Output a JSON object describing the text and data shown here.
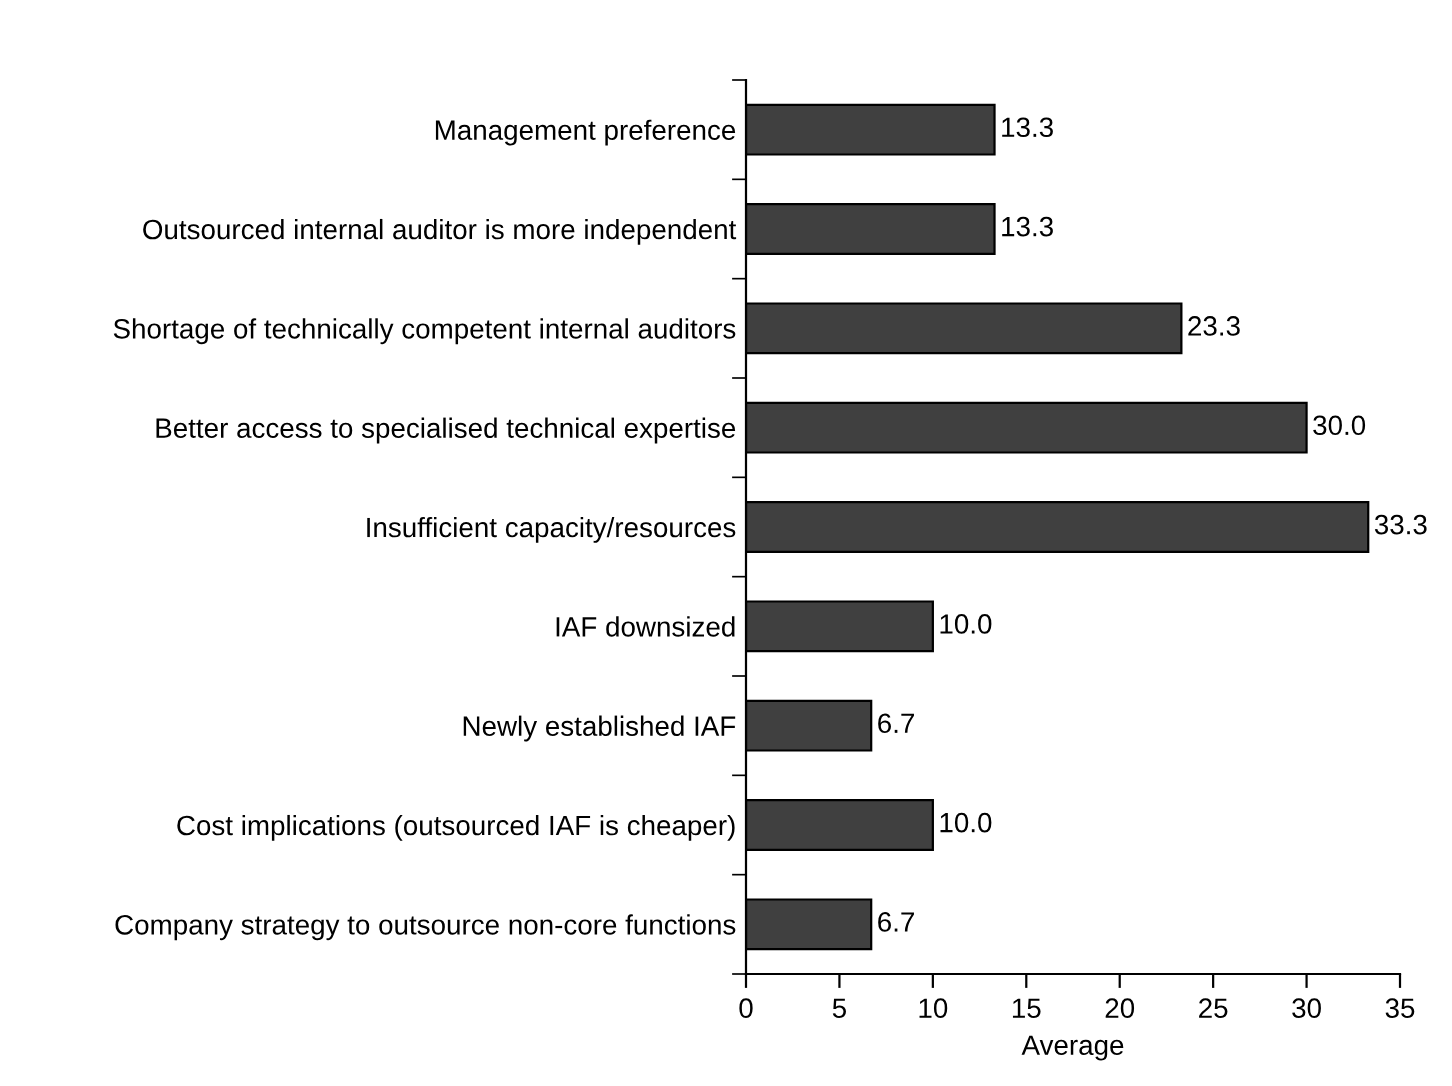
{
  "chart_data": {
    "type": "bar",
    "orientation": "horizontal",
    "xlabel": "Average",
    "categories": [
      "Management preference",
      "Outsourced internal auditor is more independent",
      "Shortage of technically competent internal auditors",
      "Better access to specialised technical expertise",
      "Insufficient capacity/resources",
      "IAF downsized",
      "Newly established IAF",
      "Cost implications (outsourced IAF is cheaper)",
      "Company strategy to outsource non-core functions"
    ],
    "values": [
      13.3,
      13.3,
      23.3,
      30.0,
      33.3,
      10.0,
      6.7,
      10.0,
      6.7
    ],
    "value_labels": [
      "13.3",
      "13.3",
      "23.3",
      "30.0",
      "33.3",
      "10.0",
      "6.7",
      "10.0",
      "6.7"
    ],
    "color": "#404040",
    "xlim": [
      0,
      35
    ],
    "xticks": [
      0,
      5,
      10,
      15,
      20,
      25,
      30,
      35
    ],
    "grid": false
  }
}
